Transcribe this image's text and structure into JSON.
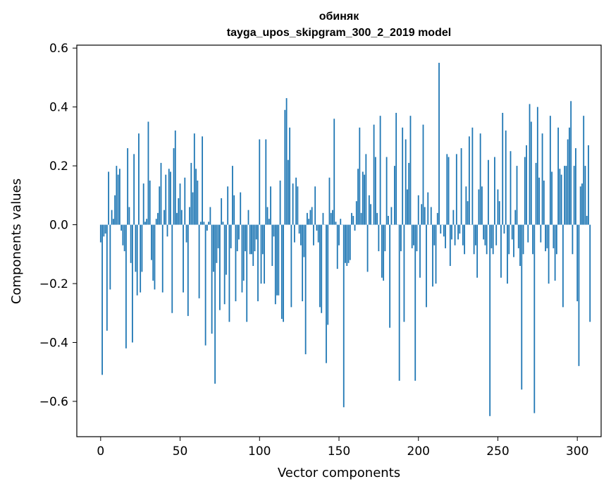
{
  "chart_data": {
    "type": "bar",
    "title_line1": "обиняк",
    "title_line2": "tayga_upos_skipgram_300_2_2019 model",
    "xlabel": "Vector components",
    "ylabel": "Components values",
    "xlim": [
      -15,
      315
    ],
    "ylim": [
      -0.72,
      0.61
    ],
    "xticks": [
      0,
      50,
      100,
      150,
      200,
      250,
      300
    ],
    "xtick_labels": [
      "0",
      "50",
      "100",
      "150",
      "200",
      "250",
      "300"
    ],
    "yticks": [
      -0.6,
      -0.4,
      -0.2,
      0.0,
      0.2,
      0.4,
      0.6
    ],
    "ytick_labels": [
      "−0.6",
      "−0.4",
      "−0.2",
      "0.0",
      "0.2",
      "0.4",
      "0.6"
    ],
    "bar_color": "#1f77b4",
    "values": [
      -0.06,
      -0.51,
      -0.04,
      -0.03,
      -0.36,
      0.18,
      -0.22,
      0.05,
      0.02,
      0.1,
      0.2,
      0.17,
      0.19,
      -0.02,
      -0.07,
      -0.09,
      -0.42,
      0.26,
      0.06,
      -0.13,
      -0.4,
      0.24,
      -0.16,
      -0.24,
      0.31,
      -0.23,
      -0.16,
      0.14,
      0.01,
      0.02,
      0.35,
      0.15,
      -0.12,
      -0.19,
      -0.22,
      0.02,
      0.04,
      0.13,
      0.21,
      -0.23,
      0.05,
      0.17,
      -0.04,
      0.19,
      0.18,
      -0.3,
      0.26,
      0.32,
      0.04,
      0.09,
      0.14,
      0.05,
      -0.23,
      0.16,
      -0.06,
      -0.31,
      0.06,
      0.21,
      0.11,
      0.31,
      0.19,
      0.15,
      -0.25,
      0.01,
      0.3,
      0.01,
      -0.41,
      -0.02,
      0.01,
      0.06,
      -0.37,
      -0.16,
      -0.54,
      -0.13,
      -0.08,
      -0.29,
      0.09,
      0.01,
      -0.27,
      -0.17,
      0.13,
      -0.33,
      -0.08,
      0.2,
      0.1,
      -0.26,
      -0.09,
      -0.05,
      0.11,
      -0.23,
      -0.19,
      -0.09,
      -0.33,
      0.05,
      -0.1,
      -0.1,
      -0.14,
      -0.09,
      -0.05,
      -0.26,
      0.29,
      -0.2,
      -0.1,
      -0.2,
      0.29,
      0.06,
      0.02,
      0.13,
      -0.14,
      -0.04,
      -0.27,
      -0.24,
      -0.24,
      0.15,
      -0.32,
      -0.33,
      0.39,
      0.43,
      0.22,
      0.33,
      -0.28,
      0.14,
      -0.06,
      0.16,
      0.13,
      -0.03,
      -0.07,
      -0.26,
      -0.11,
      -0.44,
      0.04,
      0.02,
      0.05,
      0.06,
      -0.07,
      0.13,
      -0.02,
      -0.06,
      -0.28,
      -0.3,
      0.04,
      0.0,
      -0.47,
      -0.34,
      0.16,
      0.04,
      0.05,
      0.36,
      0.01,
      -0.15,
      -0.07,
      0.02,
      0.0,
      -0.62,
      -0.13,
      -0.14,
      -0.13,
      -0.12,
      0.04,
      0.03,
      -0.02,
      0.08,
      0.19,
      0.33,
      0.04,
      0.18,
      0.17,
      0.24,
      -0.16,
      0.1,
      0.07,
      0.0,
      0.34,
      0.23,
      0.04,
      -0.09,
      0.37,
      -0.18,
      -0.19,
      -0.09,
      0.23,
      0.03,
      -0.35,
      0.06,
      0.0,
      0.2,
      0.38,
      0.0,
      -0.53,
      -0.09,
      0.33,
      -0.33,
      0.29,
      0.12,
      0.21,
      0.37,
      -0.08,
      -0.07,
      -0.53,
      -0.09,
      0.1,
      -0.18,
      0.07,
      0.34,
      0.06,
      -0.28,
      0.11,
      0.0,
      0.06,
      -0.21,
      -0.07,
      -0.2,
      0.04,
      0.55,
      -0.03,
      0.0,
      -0.04,
      -0.08,
      0.24,
      0.23,
      -0.14,
      -0.05,
      0.05,
      -0.07,
      0.24,
      -0.05,
      -0.03,
      0.26,
      -0.07,
      -0.1,
      0.13,
      0.08,
      0.3,
      0.0,
      0.33,
      -0.1,
      -0.07,
      -0.18,
      0.12,
      0.31,
      0.13,
      -0.05,
      -0.07,
      -0.1,
      0.22,
      -0.65,
      -0.08,
      -0.1,
      0.23,
      -0.07,
      0.12,
      0.08,
      -0.18,
      0.38,
      -0.03,
      0.32,
      -0.2,
      -0.1,
      0.25,
      -0.05,
      -0.11,
      0.05,
      0.2,
      -0.08,
      -0.14,
      -0.56,
      -0.1,
      0.23,
      0.27,
      -0.06,
      0.41,
      0.35,
      -0.1,
      -0.64,
      0.21,
      0.4,
      0.16,
      -0.06,
      0.31,
      0.15,
      -0.09,
      -0.08,
      -0.2,
      0.37,
      0.18,
      -0.08,
      -0.19,
      -0.1,
      0.33,
      0.19,
      0.17,
      -0.28,
      0.2,
      0.2,
      0.29,
      0.33,
      0.42,
      -0.1,
      0.2,
      0.26,
      -0.26,
      -0.48,
      0.13,
      0.14,
      0.37,
      0.2,
      0.03,
      0.27,
      -0.33
    ]
  }
}
